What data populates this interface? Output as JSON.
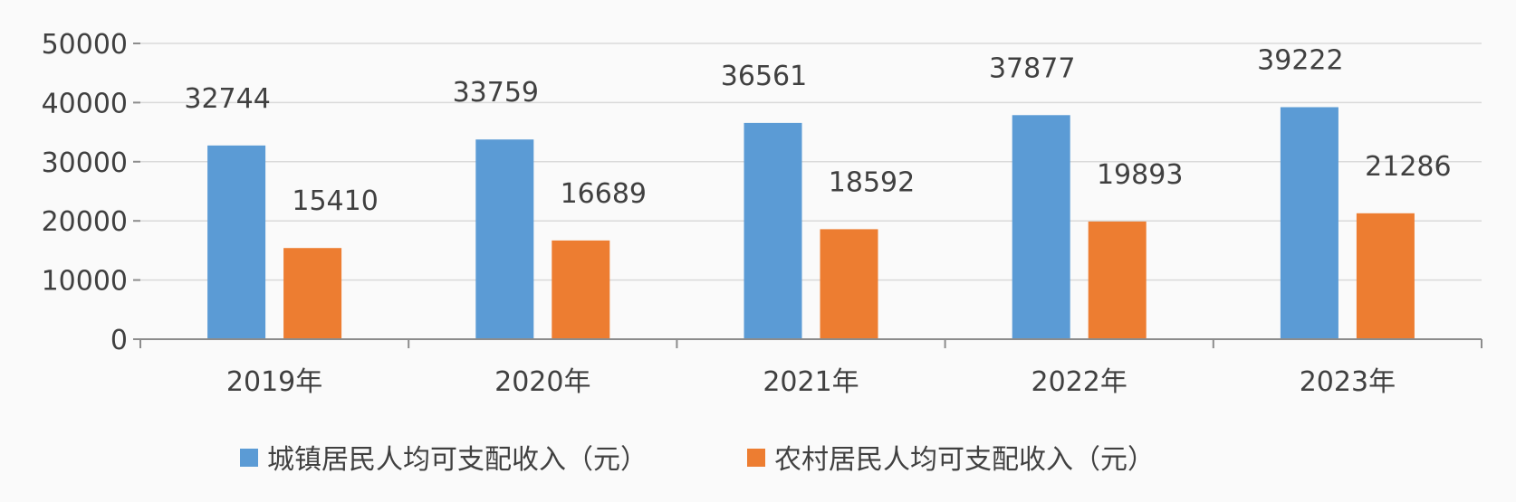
{
  "chart_data": {
    "type": "bar",
    "categories": [
      "2019年",
      "2020年",
      "2021年",
      "2022年",
      "2023年"
    ],
    "series": [
      {
        "name": "城镇居民人均可支配收入（元）",
        "values": [
          32744,
          33759,
          36561,
          37877,
          39222
        ],
        "color": "#5b9bd5"
      },
      {
        "name": "农村居民人均可支配收入（元）",
        "values": [
          15410,
          16689,
          18592,
          19893,
          21286
        ],
        "color": "#ed7d31"
      }
    ],
    "yticks": [
      "0",
      "10000",
      "20000",
      "30000",
      "40000",
      "50000"
    ],
    "ylim": [
      0,
      50000
    ],
    "grid": true,
    "legend_position": "bottom",
    "data_labels": true
  }
}
